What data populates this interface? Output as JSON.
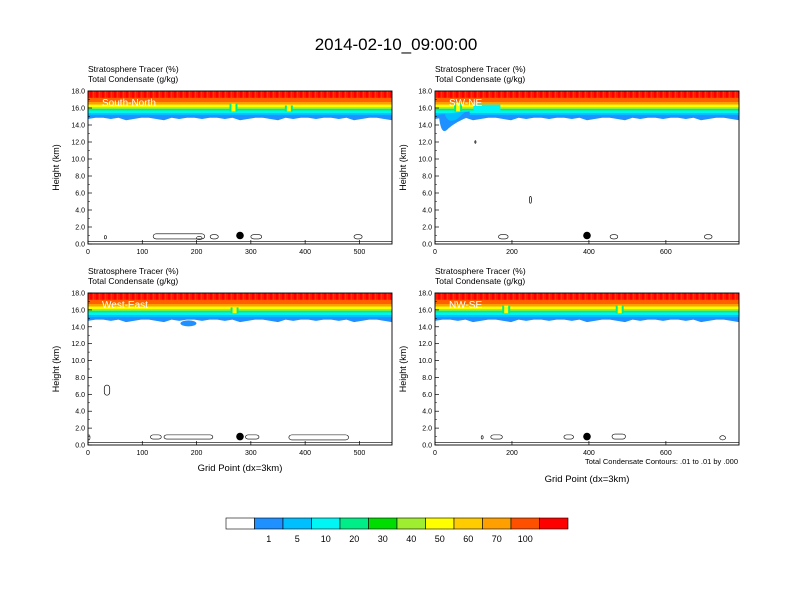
{
  "title": "2014-02-10_09:00:00",
  "colors": {
    "levels": [
      "#ffffff",
      "#1e90ff",
      "#00bfff",
      "#00f5f5",
      "#00ee88",
      "#00dd00",
      "#a0ee30",
      "#ffff00",
      "#ffcc00",
      "#ffa000",
      "#ff5000",
      "#ff0000"
    ]
  },
  "chart_data": {
    "type": "heatmap",
    "colorbar": {
      "labels": [
        "1",
        "5",
        "10",
        "20",
        "30",
        "40",
        "50",
        "60",
        "70",
        "100"
      ],
      "colors": [
        "#ffffff",
        "#1e90ff",
        "#00bfff",
        "#00f5f5",
        "#00ee88",
        "#00dd00",
        "#a0ee30",
        "#ffff00",
        "#ffcc00",
        "#ffa000",
        "#ff5000",
        "#ff0000"
      ]
    },
    "contour_note": "Total Condensate Contours: .01 to .01 by .000",
    "panels": [
      {
        "label": "South-North",
        "subtitle1": "Stratosphere Tracer   (%)",
        "subtitle2": "Total Condensate   (g/kg)",
        "ylabel": "Height (km)",
        "xlabel": "",
        "xlim": [
          0,
          560
        ],
        "ylim": [
          0,
          18
        ],
        "xticks": [
          0,
          100,
          200,
          300,
          400,
          500
        ],
        "yticks": [
          "0.0",
          "2.0",
          "4.0",
          "6.0",
          "8.0",
          "10.0",
          "12.0",
          "14.0",
          "16.0",
          "18.0"
        ],
        "tropopause_km": 15.6,
        "marker": {
          "x": 280,
          "y": 1.0
        },
        "contours": [
          [
            30,
            0.6,
            4,
            0.4
          ],
          [
            120,
            0.6,
            95,
            0.6
          ],
          [
            200,
            0.5,
            10,
            0.4
          ],
          [
            225,
            0.6,
            15,
            0.5
          ],
          [
            300,
            0.6,
            20,
            0.5
          ],
          [
            490,
            0.6,
            15,
            0.5
          ]
        ],
        "bumps": [
          [
            268,
            16.5
          ],
          [
            370,
            16.3
          ]
        ]
      },
      {
        "label": "SW-NE",
        "subtitle1": "Stratosphere Tracer   (%)",
        "subtitle2": "Total Condensate   (g/kg)",
        "ylabel": "Height (km)",
        "xlabel": "",
        "xlim": [
          0,
          790
        ],
        "ylim": [
          0,
          18
        ],
        "xticks": [
          0,
          200,
          400,
          600
        ],
        "yticks": [
          "0.0",
          "2.0",
          "4.0",
          "6.0",
          "8.0",
          "10.0",
          "12.0",
          "14.0",
          "16.0",
          "18.0"
        ],
        "tropopause_km": 15.6,
        "marker": {
          "x": 395,
          "y": 1.0
        },
        "contours": [
          [
            165,
            0.6,
            25,
            0.5
          ],
          [
            455,
            0.6,
            20,
            0.5
          ],
          [
            700,
            0.6,
            20,
            0.5
          ]
        ],
        "ovals": [
          [
            248,
            5.2,
            5,
            0.8
          ],
          [
            105,
            12.0,
            3,
            0.3
          ]
        ],
        "bumps": [
          [
            60,
            16.6
          ]
        ]
      },
      {
        "label": "West-East",
        "subtitle1": "Stratosphere Tracer   (%)",
        "subtitle2": "Total Condensate   (g/kg)",
        "ylabel": "Height (km)",
        "xlabel": "Grid Point (dx=3km)",
        "xlim": [
          0,
          560
        ],
        "ylim": [
          0,
          18
        ],
        "xticks": [
          0,
          100,
          200,
          300,
          400,
          500
        ],
        "yticks": [
          "0.0",
          "2.0",
          "4.0",
          "6.0",
          "8.0",
          "10.0",
          "12.0",
          "14.0",
          "16.0",
          "18.0"
        ],
        "tropopause_km": 15.6,
        "marker": {
          "x": 280,
          "y": 1.0
        },
        "contours": [
          [
            115,
            0.7,
            20,
            0.5
          ],
          [
            140,
            0.7,
            90,
            0.5
          ],
          [
            290,
            0.7,
            25,
            0.5
          ],
          [
            370,
            0.6,
            110,
            0.6
          ],
          [
            0,
            0.6,
            3,
            0.6
          ]
        ],
        "ovals": [
          [
            35,
            6.5,
            10,
            1.2
          ]
        ],
        "blob": [
          185,
          14.4
        ],
        "bumps": [
          [
            270,
            16.3
          ]
        ]
      },
      {
        "label": "NW-SE",
        "subtitle1": "Stratosphere Tracer   (%)",
        "subtitle2": "Total Condensate   (g/kg)",
        "ylabel": "Height (km)",
        "xlabel": "Grid Point (dx=3km)",
        "xlim": [
          0,
          790
        ],
        "ylim": [
          0,
          18
        ],
        "xticks": [
          0,
          200,
          400,
          600
        ],
        "yticks": [
          "0.0",
          "2.0",
          "4.0",
          "6.0",
          "8.0",
          "10.0",
          "12.0",
          "14.0",
          "16.0",
          "18.0"
        ],
        "tropopause_km": 15.6,
        "marker": {
          "x": 395,
          "y": 1.0
        },
        "contours": [
          [
            120,
            0.7,
            4,
            0.4
          ],
          [
            145,
            0.7,
            30,
            0.5
          ],
          [
            335,
            0.7,
            25,
            0.5
          ],
          [
            460,
            0.7,
            35,
            0.6
          ],
          [
            740,
            0.6,
            15,
            0.5
          ]
        ],
        "bumps": [
          [
            185,
            16.5
          ],
          [
            480,
            16.5
          ]
        ]
      }
    ]
  }
}
